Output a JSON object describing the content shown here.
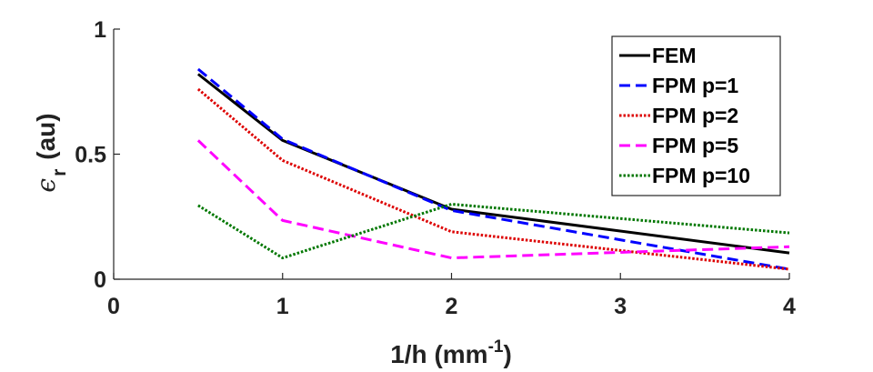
{
  "chart_data": {
    "type": "line",
    "xlabel": "1/h (mm",
    "xlabel_sup": "-1",
    "xlabel_close": ")",
    "ylabel_symbol": "ϵ",
    "ylabel_sub": "r",
    "ylabel_unit": "(au)",
    "xlim": [
      0,
      4
    ],
    "ylim": [
      0,
      1
    ],
    "xticks": [
      0,
      1,
      2,
      3,
      4
    ],
    "xtick_labels": [
      "0",
      "1",
      "2",
      "3",
      "4"
    ],
    "yticks": [
      0,
      0.5,
      1
    ],
    "ytick_labels": [
      "0",
      "0.5",
      "1"
    ],
    "grid": false,
    "legend_position": "top-right",
    "x": [
      0.5,
      1,
      2,
      4
    ],
    "series": [
      {
        "name": "FEM",
        "values": [
          0.82,
          0.555,
          0.28,
          0.105
        ],
        "color": "#000000",
        "dash": "solid"
      },
      {
        "name": "FPM p=1",
        "values": [
          0.84,
          0.56,
          0.275,
          0.04
        ],
        "color": "#0000ff",
        "dash": "dashed"
      },
      {
        "name": "FPM p=2",
        "values": [
          0.76,
          0.475,
          0.19,
          0.04
        ],
        "color": "#dd0000",
        "dash": "dotted"
      },
      {
        "name": "FPM p=5",
        "values": [
          0.555,
          0.235,
          0.085,
          0.13
        ],
        "color": "#ff00ff",
        "dash": "dashed"
      },
      {
        "name": "FPM p=10",
        "values": [
          0.295,
          0.085,
          0.3,
          0.185
        ],
        "color": "#007700",
        "dash": "dotted"
      }
    ]
  }
}
